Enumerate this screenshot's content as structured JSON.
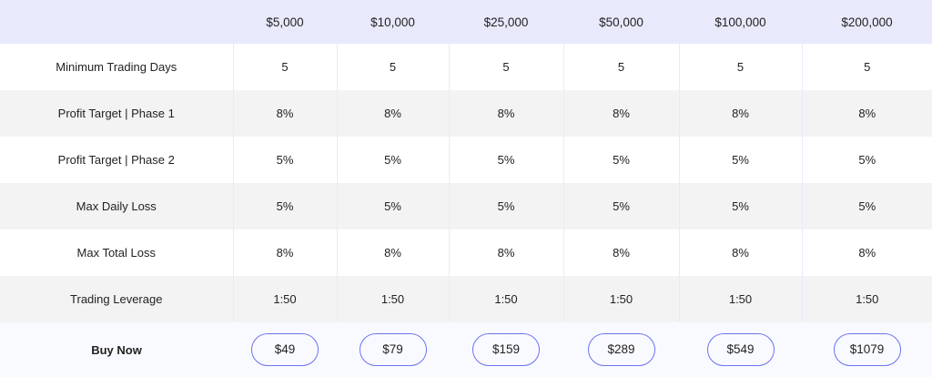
{
  "columns": [
    "$5,000",
    "$10,000",
    "$25,000",
    "$50,000",
    "$100,000",
    "$200,000"
  ],
  "rows": [
    {
      "label": "Minimum Trading Days",
      "values": [
        "5",
        "5",
        "5",
        "5",
        "5",
        "5"
      ]
    },
    {
      "label": "Profit Target | Phase 1",
      "values": [
        "8%",
        "8%",
        "8%",
        "8%",
        "8%",
        "8%"
      ]
    },
    {
      "label": "Profit Target | Phase 2",
      "values": [
        "5%",
        "5%",
        "5%",
        "5%",
        "5%",
        "5%"
      ]
    },
    {
      "label": "Max Daily Loss",
      "values": [
        "5%",
        "5%",
        "5%",
        "5%",
        "5%",
        "5%"
      ]
    },
    {
      "label": "Max Total Loss",
      "values": [
        "8%",
        "8%",
        "8%",
        "8%",
        "8%",
        "8%"
      ]
    },
    {
      "label": "Trading Leverage",
      "values": [
        "1:50",
        "1:50",
        "1:50",
        "1:50",
        "1:50",
        "1:50"
      ]
    }
  ],
  "footer": {
    "label": "Buy Now",
    "prices": [
      "$49",
      "$79",
      "$159",
      "$289",
      "$549",
      "$1079"
    ]
  },
  "colors": {
    "header_bg": "#e8eafc",
    "button_border": "#6b73f0",
    "alt_row": "#f3f3f3"
  }
}
